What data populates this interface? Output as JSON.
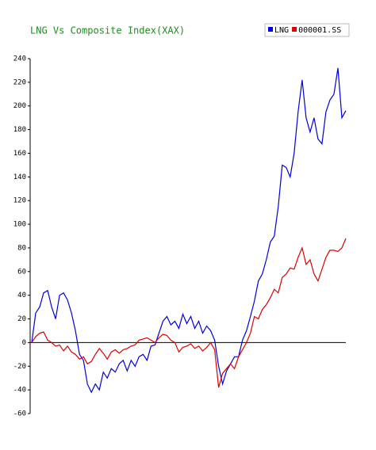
{
  "chart_data": {
    "type": "line",
    "title": "LNG Vs Composite Index(XAX)",
    "ylim": [
      -60,
      240
    ],
    "yticks": [
      -60,
      -40,
      -20,
      0,
      20,
      40,
      60,
      80,
      100,
      120,
      140,
      160,
      180,
      200,
      220,
      240
    ],
    "series": [
      {
        "name": "LNG",
        "color": "#0000dd",
        "values": [
          0,
          25,
          30,
          42,
          44,
          30,
          20,
          40,
          42,
          36,
          25,
          10,
          -10,
          -15,
          -35,
          -42,
          -35,
          -40,
          -25,
          -30,
          -22,
          -25,
          -18,
          -15,
          -24,
          -15,
          -20,
          -12,
          -10,
          -15,
          -3,
          -2,
          8,
          18,
          22,
          15,
          18,
          12,
          24,
          16,
          22,
          12,
          18,
          8,
          14,
          10,
          2,
          -20,
          -35,
          -24,
          -18,
          -12,
          -12,
          2,
          10,
          22,
          35,
          52,
          58,
          70,
          85,
          90,
          115,
          150,
          148,
          140,
          160,
          195,
          222,
          190,
          178,
          190,
          172,
          168,
          195,
          205,
          210,
          232,
          190,
          196
        ]
      },
      {
        "name": "000001.SS",
        "color": "#dd0000",
        "values": [
          0,
          5,
          8,
          9,
          2,
          0,
          -3,
          -2,
          -7,
          -3,
          -8,
          -10,
          -14,
          -12,
          -18,
          -16,
          -10,
          -5,
          -9,
          -14,
          -8,
          -6,
          -9,
          -6,
          -5,
          -3,
          -2,
          2,
          3,
          4,
          2,
          0,
          4,
          7,
          6,
          2,
          0,
          -8,
          -4,
          -3,
          -1,
          -5,
          -3,
          -7,
          -4,
          0,
          -6,
          -38,
          -26,
          -22,
          -18,
          -22,
          -12,
          -6,
          0,
          8,
          22,
          20,
          28,
          32,
          38,
          45,
          42,
          55,
          58,
          63,
          62,
          72,
          80,
          66,
          70,
          58,
          52,
          62,
          72,
          78,
          78,
          77,
          80,
          88
        ]
      }
    ]
  }
}
